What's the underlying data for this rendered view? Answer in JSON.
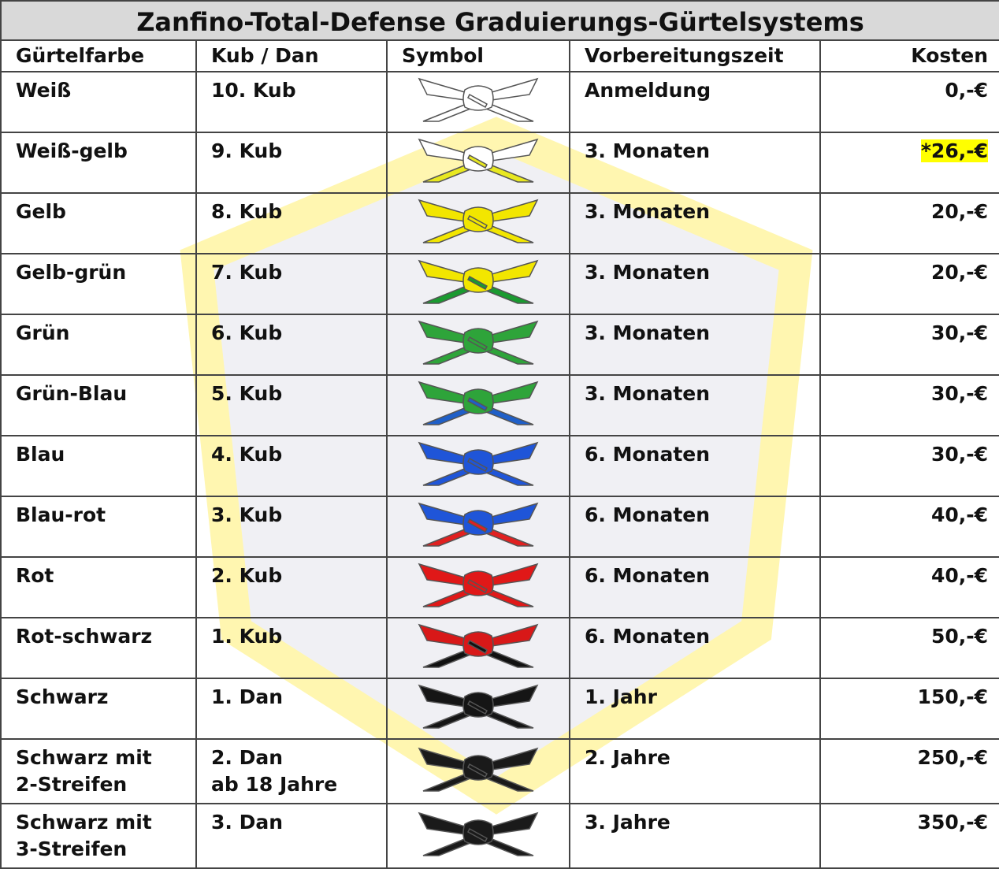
{
  "title": "Zanfino-Total-Defense Graduierungs-Gürtelsystems",
  "headers": [
    "Gürtelfarbe",
    "Kub / Dan",
    "Symbol",
    "Vorbereitungszeit",
    "Kosten"
  ],
  "rows": [
    {
      "belt": [
        "Weiß"
      ],
      "grade": [
        "10. Kub"
      ],
      "time": "Anmeldung",
      "cost": "0,-€"
    },
    {
      "belt": [
        "Weiß-gelb"
      ],
      "grade": [
        "9. Kub"
      ],
      "time": "3. Monaten",
      "cost": "*26,-€"
    },
    {
      "belt": [
        "Gelb"
      ],
      "grade": [
        "8. Kub"
      ],
      "time": "3. Monaten",
      "cost": "20,-€"
    },
    {
      "belt": [
        "Gelb-grün"
      ],
      "grade": [
        "7. Kub"
      ],
      "time": "3. Monaten",
      "cost": "20,-€"
    },
    {
      "belt": [
        "Grün"
      ],
      "grade": [
        "6. Kub"
      ],
      "time": "3. Monaten",
      "cost": "30,-€"
    },
    {
      "belt": [
        "Grün-Blau"
      ],
      "grade": [
        "5. Kub"
      ],
      "time": "3. Monaten",
      "cost": "30,-€"
    },
    {
      "belt": [
        "Blau"
      ],
      "grade": [
        "4. Kub"
      ],
      "time": "6. Monaten",
      "cost": "30,-€"
    },
    {
      "belt": [
        "Blau-rot"
      ],
      "grade": [
        "3. Kub"
      ],
      "time": "6. Monaten",
      "cost": "40,-€"
    },
    {
      "belt": [
        "Rot"
      ],
      "grade": [
        "2. Kub"
      ],
      "time": "6. Monaten",
      "cost": "40,-€"
    },
    {
      "belt": [
        "Rot-schwarz"
      ],
      "grade": [
        "1. Kub"
      ],
      "time": "6. Monaten",
      "cost": "50,-€"
    },
    {
      "belt": [
        "Schwarz"
      ],
      "grade": [
        "1. Dan"
      ],
      "time": "1. Jahr",
      "cost": "150,-€"
    },
    {
      "belt": [
        "Schwarz mit",
        "2-Streifen"
      ],
      "grade": [
        "2. Dan",
        "ab 18 Jahre"
      ],
      "time": "2. Jahre",
      "cost": "250,-€"
    },
    {
      "belt": [
        "Schwarz mit",
        "3-Streifen"
      ],
      "grade": [
        "3. Dan"
      ],
      "time": "3. Jahre",
      "cost": "350,-€"
    }
  ]
}
